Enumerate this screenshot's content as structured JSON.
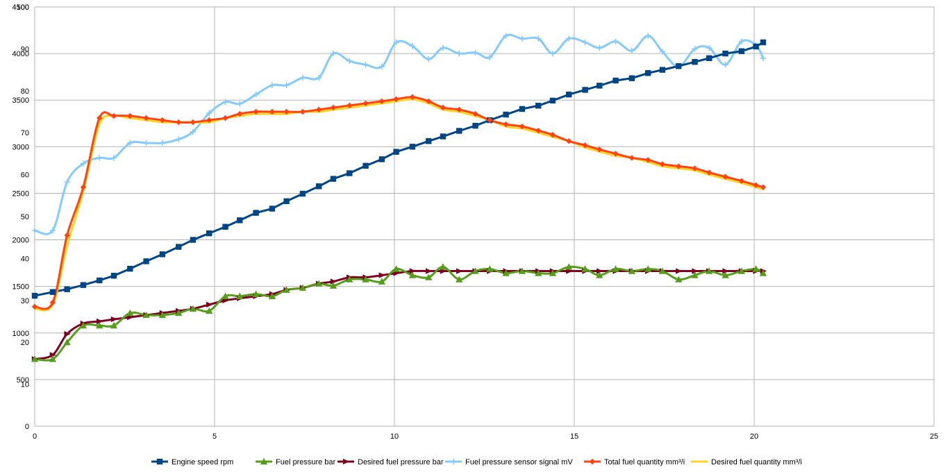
{
  "chart_data": {
    "type": "line",
    "grid": true,
    "legend_position": "bottom",
    "x_axis": {
      "range": [
        0,
        25
      ],
      "ticks": [
        0,
        5,
        10,
        15,
        20,
        25
      ]
    },
    "y_axis_rpm": {
      "range": [
        0,
        4500
      ],
      "ticks": [
        0,
        500,
        1000,
        1500,
        2000,
        2500,
        3000,
        3500,
        4000,
        4500
      ]
    },
    "y_axis_small": {
      "range": [
        0,
        100
      ],
      "ticks": [
        10,
        20,
        30,
        40,
        50,
        60,
        70,
        80,
        90,
        100
      ]
    },
    "series": [
      {
        "name": "Engine speed rpm",
        "color": "#004586",
        "marker": "square",
        "axis": "rpm",
        "smooth": false,
        "points": [
          [
            0.0,
            1400
          ],
          [
            0.5,
            1440
          ],
          [
            0.9,
            1470
          ],
          [
            1.35,
            1515
          ],
          [
            1.8,
            1565
          ],
          [
            2.2,
            1615
          ],
          [
            2.65,
            1690
          ],
          [
            3.1,
            1770
          ],
          [
            3.55,
            1845
          ],
          [
            4.0,
            1925
          ],
          [
            4.4,
            2000
          ],
          [
            4.85,
            2070
          ],
          [
            5.3,
            2140
          ],
          [
            5.7,
            2210
          ],
          [
            6.15,
            2290
          ],
          [
            6.6,
            2335
          ],
          [
            7.0,
            2415
          ],
          [
            7.45,
            2495
          ],
          [
            7.9,
            2575
          ],
          [
            8.3,
            2655
          ],
          [
            8.75,
            2715
          ],
          [
            9.2,
            2795
          ],
          [
            9.65,
            2865
          ],
          [
            10.05,
            2945
          ],
          [
            10.5,
            3000
          ],
          [
            10.95,
            3060
          ],
          [
            11.35,
            3110
          ],
          [
            11.8,
            3170
          ],
          [
            12.25,
            3225
          ],
          [
            12.65,
            3285
          ],
          [
            13.1,
            3345
          ],
          [
            13.55,
            3405
          ],
          [
            14.0,
            3440
          ],
          [
            14.4,
            3495
          ],
          [
            14.85,
            3560
          ],
          [
            15.3,
            3610
          ],
          [
            15.7,
            3655
          ],
          [
            16.15,
            3710
          ],
          [
            16.6,
            3735
          ],
          [
            17.05,
            3790
          ],
          [
            17.45,
            3825
          ],
          [
            17.9,
            3865
          ],
          [
            18.35,
            3910
          ],
          [
            18.75,
            3950
          ],
          [
            19.2,
            4000
          ],
          [
            19.65,
            4025
          ],
          [
            20.05,
            4075
          ],
          [
            20.25,
            4120
          ]
        ]
      },
      {
        "name": "Fuel pressure bar",
        "color": "#579d1c",
        "marker": "triangle",
        "axis": "small",
        "smooth": true,
        "points": [
          [
            0.0,
            16
          ],
          [
            0.5,
            16
          ],
          [
            0.9,
            20
          ],
          [
            1.35,
            24
          ],
          [
            1.8,
            24
          ],
          [
            2.2,
            24
          ],
          [
            2.65,
            27
          ],
          [
            3.1,
            26.5
          ],
          [
            3.55,
            26.5
          ],
          [
            4.0,
            27
          ],
          [
            4.4,
            28
          ],
          [
            4.85,
            27.5
          ],
          [
            5.3,
            31
          ],
          [
            5.7,
            31
          ],
          [
            6.15,
            31.5
          ],
          [
            6.6,
            31
          ],
          [
            7.0,
            32.5
          ],
          [
            7.45,
            33
          ],
          [
            7.9,
            34
          ],
          [
            8.3,
            33.5
          ],
          [
            8.75,
            35
          ],
          [
            9.2,
            35
          ],
          [
            9.65,
            34.5
          ],
          [
            10.05,
            37.5
          ],
          [
            10.5,
            36
          ],
          [
            10.95,
            35.5
          ],
          [
            11.35,
            38
          ],
          [
            11.8,
            35
          ],
          [
            12.25,
            37
          ],
          [
            12.65,
            37.5
          ],
          [
            13.1,
            36.5
          ],
          [
            13.55,
            37
          ],
          [
            14.0,
            36.5
          ],
          [
            14.4,
            36.5
          ],
          [
            14.85,
            38
          ],
          [
            15.3,
            37.5
          ],
          [
            15.7,
            36
          ],
          [
            16.15,
            37.5
          ],
          [
            16.6,
            37
          ],
          [
            17.05,
            37.5
          ],
          [
            17.45,
            37
          ],
          [
            17.9,
            35
          ],
          [
            18.35,
            36
          ],
          [
            18.75,
            37
          ],
          [
            19.2,
            36
          ],
          [
            19.65,
            37
          ],
          [
            20.05,
            37.5
          ],
          [
            20.25,
            36.5
          ]
        ]
      },
      {
        "name": "Desired fuel pressure bar",
        "color": "#7e0021",
        "marker": "arrow",
        "axis": "small",
        "smooth": true,
        "points": [
          [
            0.0,
            16
          ],
          [
            0.5,
            17
          ],
          [
            0.9,
            22
          ],
          [
            1.35,
            24.5
          ],
          [
            1.8,
            25
          ],
          [
            2.2,
            25.5
          ],
          [
            2.65,
            26
          ],
          [
            3.1,
            26.5
          ],
          [
            3.55,
            27
          ],
          [
            4.0,
            27.5
          ],
          [
            4.4,
            28
          ],
          [
            4.85,
            29
          ],
          [
            5.3,
            30
          ],
          [
            5.7,
            30.5
          ],
          [
            6.15,
            31
          ],
          [
            6.6,
            31.5
          ],
          [
            7.0,
            32.5
          ],
          [
            7.45,
            33
          ],
          [
            7.9,
            34
          ],
          [
            8.3,
            34.5
          ],
          [
            8.75,
            35.5
          ],
          [
            9.2,
            35.5
          ],
          [
            9.65,
            36
          ],
          [
            10.05,
            36.5
          ],
          [
            10.5,
            37
          ],
          [
            10.95,
            37
          ],
          [
            11.35,
            37
          ],
          [
            11.8,
            37
          ],
          [
            12.25,
            37
          ],
          [
            12.65,
            37
          ],
          [
            13.1,
            37
          ],
          [
            13.55,
            37
          ],
          [
            14.0,
            37
          ],
          [
            14.4,
            37
          ],
          [
            14.85,
            37
          ],
          [
            15.3,
            37
          ],
          [
            15.7,
            37
          ],
          [
            16.15,
            37
          ],
          [
            16.6,
            37
          ],
          [
            17.05,
            37
          ],
          [
            17.45,
            37
          ],
          [
            17.9,
            37
          ],
          [
            18.35,
            37
          ],
          [
            18.75,
            37
          ],
          [
            19.2,
            37
          ],
          [
            19.65,
            37
          ],
          [
            20.05,
            37
          ],
          [
            20.25,
            37
          ]
        ]
      },
      {
        "name": "Fuel pressure sensor signal mV",
        "color": "#83caff",
        "marker": "cross",
        "axis": "rpm",
        "smooth": true,
        "points": [
          [
            0.0,
            2100
          ],
          [
            0.5,
            2100
          ],
          [
            0.9,
            2620
          ],
          [
            1.35,
            2820
          ],
          [
            1.8,
            2880
          ],
          [
            2.2,
            2880
          ],
          [
            2.65,
            3040
          ],
          [
            3.1,
            3040
          ],
          [
            3.55,
            3040
          ],
          [
            4.0,
            3080
          ],
          [
            4.4,
            3160
          ],
          [
            4.85,
            3360
          ],
          [
            5.3,
            3480
          ],
          [
            5.7,
            3460
          ],
          [
            6.15,
            3560
          ],
          [
            6.6,
            3660
          ],
          [
            7.0,
            3660
          ],
          [
            7.45,
            3740
          ],
          [
            7.9,
            3740
          ],
          [
            8.3,
            4000
          ],
          [
            8.75,
            3920
          ],
          [
            9.2,
            3880
          ],
          [
            9.65,
            3860
          ],
          [
            10.05,
            4120
          ],
          [
            10.5,
            4080
          ],
          [
            10.95,
            3940
          ],
          [
            11.35,
            4060
          ],
          [
            11.8,
            4000
          ],
          [
            12.25,
            4010
          ],
          [
            12.65,
            3960
          ],
          [
            13.1,
            4190
          ],
          [
            13.55,
            4160
          ],
          [
            14.0,
            4160
          ],
          [
            14.4,
            4000
          ],
          [
            14.85,
            4160
          ],
          [
            15.3,
            4120
          ],
          [
            15.7,
            4060
          ],
          [
            16.15,
            4130
          ],
          [
            16.6,
            4030
          ],
          [
            17.05,
            4190
          ],
          [
            17.45,
            4020
          ],
          [
            17.9,
            3860
          ],
          [
            18.35,
            4050
          ],
          [
            18.75,
            4060
          ],
          [
            19.2,
            3880
          ],
          [
            19.65,
            4130
          ],
          [
            20.05,
            4090
          ],
          [
            20.25,
            3950
          ]
        ]
      },
      {
        "name": "Total fuel quantity mm³/i",
        "color": "#ff420e",
        "marker": "diamond",
        "axis": "small",
        "smooth": true,
        "points": [
          [
            0.0,
            28.5
          ],
          [
            0.5,
            29.5
          ],
          [
            0.9,
            45.5
          ],
          [
            1.35,
            57
          ],
          [
            1.8,
            73.5
          ],
          [
            2.2,
            74
          ],
          [
            2.65,
            74
          ],
          [
            3.1,
            73.5
          ],
          [
            3.55,
            73
          ],
          [
            4.0,
            72.5
          ],
          [
            4.4,
            72.5
          ],
          [
            4.85,
            73
          ],
          [
            5.3,
            73.5
          ],
          [
            5.7,
            74.5
          ],
          [
            6.15,
            75
          ],
          [
            6.6,
            75
          ],
          [
            7.0,
            75
          ],
          [
            7.45,
            75
          ],
          [
            7.9,
            75.5
          ],
          [
            8.3,
            76
          ],
          [
            8.75,
            76.5
          ],
          [
            9.2,
            77
          ],
          [
            9.65,
            77.5
          ],
          [
            10.05,
            78
          ],
          [
            10.5,
            78.5
          ],
          [
            10.95,
            77.5
          ],
          [
            11.35,
            76
          ],
          [
            11.8,
            75.5
          ],
          [
            12.25,
            74.5
          ],
          [
            12.65,
            73
          ],
          [
            13.1,
            72
          ],
          [
            13.55,
            71.5
          ],
          [
            14.0,
            70.5
          ],
          [
            14.4,
            69.5
          ],
          [
            14.85,
            68
          ],
          [
            15.3,
            67
          ],
          [
            15.7,
            66
          ],
          [
            16.15,
            65
          ],
          [
            16.6,
            64
          ],
          [
            17.05,
            63.5
          ],
          [
            17.45,
            62.5
          ],
          [
            17.9,
            62
          ],
          [
            18.35,
            61.5
          ],
          [
            18.75,
            60.5
          ],
          [
            19.2,
            59.5
          ],
          [
            19.65,
            58.5
          ],
          [
            20.05,
            57.5
          ],
          [
            20.25,
            57
          ]
        ]
      },
      {
        "name": "Desired fuel quantity mm³/i",
        "color": "#ffd320",
        "marker": "none",
        "axis": "small",
        "smooth": true,
        "points": [
          [
            0.0,
            28
          ],
          [
            0.5,
            29
          ],
          [
            0.9,
            43
          ],
          [
            1.35,
            56
          ],
          [
            1.8,
            72
          ],
          [
            2.2,
            74
          ],
          [
            2.65,
            73.5
          ],
          [
            3.1,
            73
          ],
          [
            3.55,
            72.5
          ],
          [
            4.0,
            72.5
          ],
          [
            4.4,
            72.5
          ],
          [
            4.85,
            72.5
          ],
          [
            5.3,
            73.5
          ],
          [
            5.7,
            74
          ],
          [
            6.15,
            74.5
          ],
          [
            6.6,
            74.5
          ],
          [
            7.0,
            74.5
          ],
          [
            7.45,
            75
          ],
          [
            7.9,
            75
          ],
          [
            8.3,
            75.5
          ],
          [
            8.75,
            76
          ],
          [
            9.2,
            76.5
          ],
          [
            9.65,
            77
          ],
          [
            10.05,
            77.5
          ],
          [
            10.5,
            78
          ],
          [
            10.95,
            77
          ],
          [
            11.35,
            75.5
          ],
          [
            11.8,
            75
          ],
          [
            12.25,
            74
          ],
          [
            12.65,
            73
          ],
          [
            13.1,
            71.5
          ],
          [
            13.55,
            71
          ],
          [
            14.0,
            70
          ],
          [
            14.4,
            69
          ],
          [
            14.85,
            68
          ],
          [
            15.3,
            66.5
          ],
          [
            15.7,
            65.5
          ],
          [
            16.15,
            64.5
          ],
          [
            16.6,
            64
          ],
          [
            17.05,
            63
          ],
          [
            17.45,
            62
          ],
          [
            17.9,
            61.5
          ],
          [
            18.35,
            61
          ],
          [
            18.75,
            60
          ],
          [
            19.2,
            59
          ],
          [
            19.65,
            58
          ],
          [
            20.05,
            57
          ],
          [
            20.25,
            56.5
          ]
        ]
      }
    ]
  }
}
